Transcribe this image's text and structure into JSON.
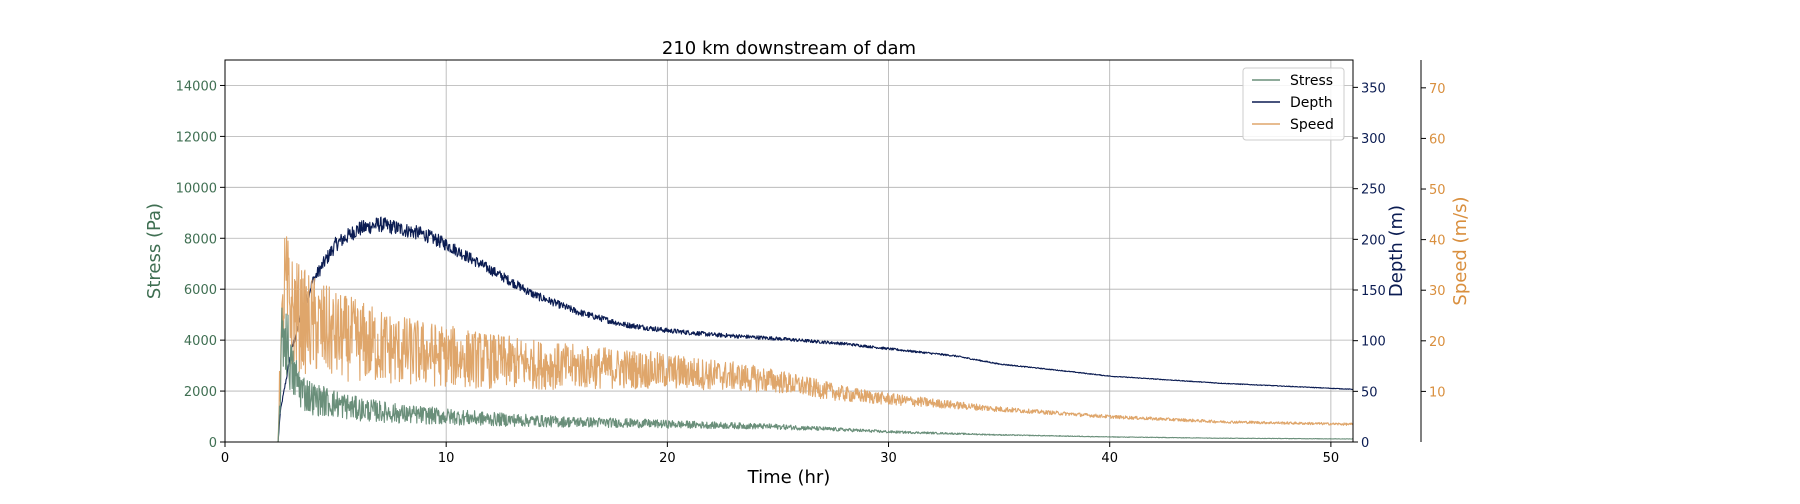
{
  "chart_data": {
    "type": "line",
    "title": "210 km downstream of dam",
    "xlabel": "Time (hr)",
    "xlim": [
      0,
      51
    ],
    "xticks": [
      0,
      10,
      20,
      30,
      40,
      50
    ],
    "grid": true,
    "legend_position": "top-right",
    "axes": [
      {
        "id": "stress",
        "label": "Stress (Pa)",
        "side": "left",
        "ylim": [
          0,
          15000
        ],
        "ticks": [
          0,
          2000,
          4000,
          6000,
          8000,
          10000,
          12000,
          14000
        ],
        "color": "#3f6f52"
      },
      {
        "id": "depth",
        "label": "Depth (m)",
        "side": "right",
        "ylim": [
          0,
          377
        ],
        "ticks": [
          0,
          50,
          100,
          150,
          200,
          250,
          300,
          350
        ],
        "color": "#0b1c52"
      },
      {
        "id": "speed",
        "label": "Speed (m/s)",
        "side": "right-outer",
        "ylim": [
          0,
          75.5
        ],
        "ticks": [
          10,
          20,
          30,
          40,
          50,
          60,
          70
        ],
        "color": "#d98f3e"
      }
    ],
    "series": [
      {
        "name": "Stress",
        "axis": "stress",
        "color": "#6a8f7a",
        "noise": 0.4,
        "x": [
          0,
          2.4,
          2.5,
          2.6,
          2.8,
          3,
          3.5,
          4,
          5,
          6,
          8,
          10,
          12,
          15,
          18,
          20,
          25,
          30,
          35,
          40,
          45,
          51
        ],
        "y": [
          0,
          0,
          2000,
          4500,
          4000,
          2800,
          2000,
          1700,
          1500,
          1300,
          1100,
          1000,
          900,
          800,
          750,
          700,
          600,
          400,
          280,
          200,
          150,
          120
        ]
      },
      {
        "name": "Depth",
        "axis": "depth",
        "color": "#0b1c52",
        "noise": 0.04,
        "x": [
          0,
          2.4,
          2.5,
          3,
          3.5,
          4,
          5,
          6,
          7,
          8,
          9,
          10,
          12,
          14,
          16,
          18,
          20,
          22,
          25,
          28,
          30,
          33,
          35,
          38,
          40,
          45,
          51
        ],
        "y": [
          0,
          0,
          30,
          90,
          130,
          160,
          195,
          210,
          215,
          210,
          205,
          195,
          170,
          145,
          128,
          116,
          110,
          106,
          102,
          97,
          92,
          85,
          77,
          70,
          65,
          58,
          52
        ]
      },
      {
        "name": "Speed",
        "axis": "speed",
        "color": "#dfa66b",
        "noise": 0.45,
        "x": [
          0,
          2.4,
          2.5,
          2.7,
          3,
          3.5,
          4,
          5,
          6,
          8,
          10,
          12,
          15,
          18,
          20,
          23,
          25,
          28,
          30,
          35,
          40,
          45,
          51
        ],
        "y": [
          0,
          0,
          15,
          30,
          26,
          24,
          23,
          21,
          20,
          18,
          17,
          16,
          15,
          14.5,
          14,
          13,
          12,
          9.5,
          8.5,
          6.5,
          5,
          4,
          3.5
        ]
      }
    ]
  }
}
